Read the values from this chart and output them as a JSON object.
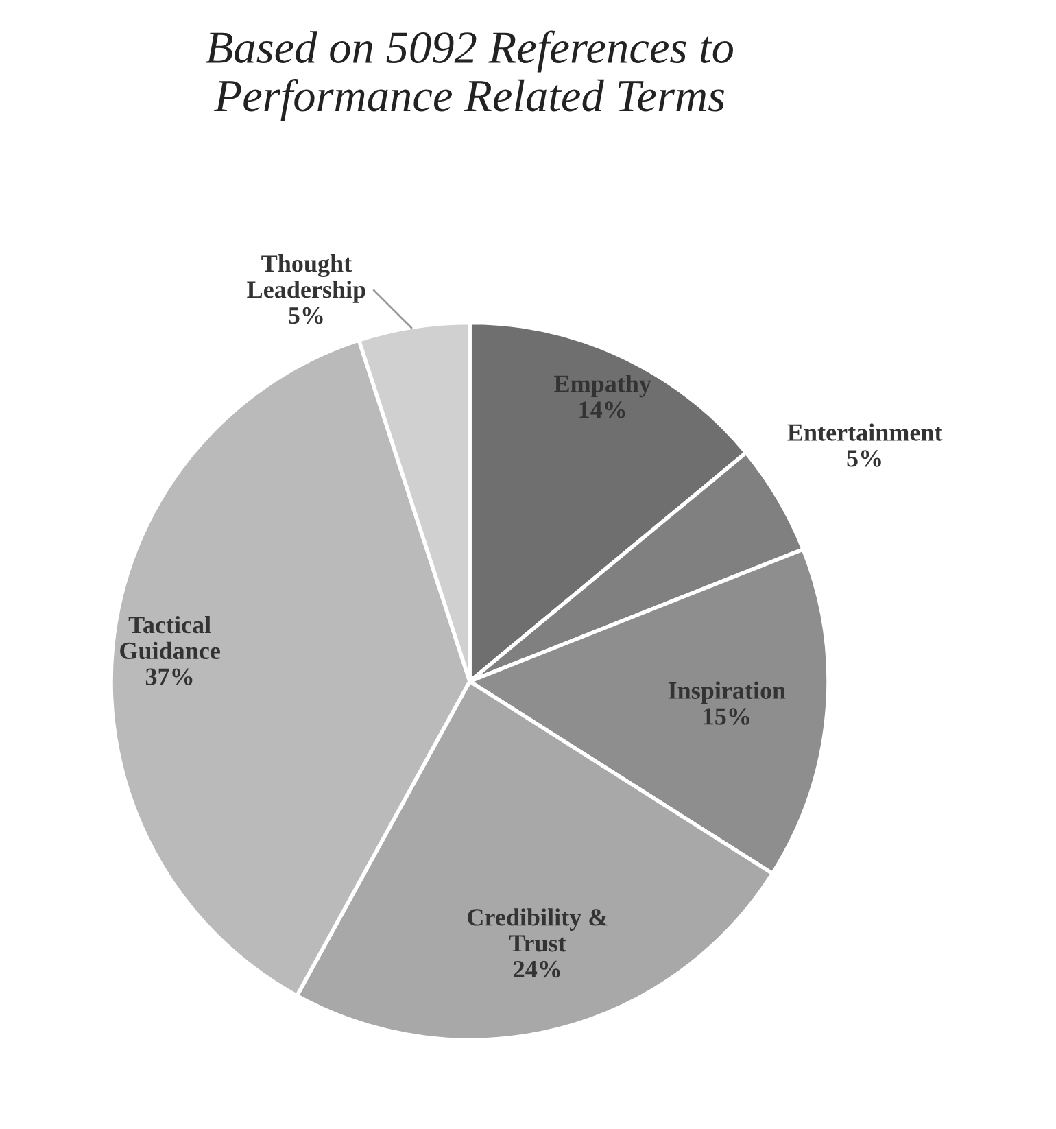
{
  "chart_data": {
    "type": "pie",
    "title": "Based on 5092 References to\nPerformance Related Terms",
    "categories": [
      "Empathy",
      "Entertainment",
      "Inspiration",
      "Credibility & Trust",
      "Tactical Guidance",
      "Thought Leadership"
    ],
    "values": [
      14,
      5,
      15,
      24,
      37,
      5
    ],
    "colors": [
      "#6f6f6f",
      "#808080",
      "#8e8e8e",
      "#a8a8a8",
      "#bababa",
      "#d0d0d0"
    ],
    "value_labels": [
      "14%",
      "5%",
      "15%",
      "24%",
      "37%",
      "5%"
    ]
  }
}
